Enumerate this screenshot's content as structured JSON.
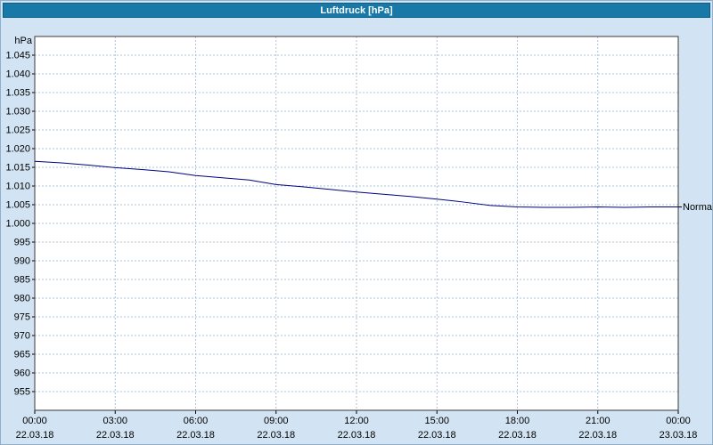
{
  "window": {
    "titlebar_bg": "#1879a8",
    "titlebar_border": "#0d5a83",
    "page_background": "#d2e4f3"
  },
  "chart_data": {
    "type": "line",
    "title": "Luftdruck [hPa]",
    "unit_label": "hPa",
    "xlabel": "",
    "ylabel": "hPa",
    "ylim": [
      950,
      1050
    ],
    "xlim_hours": [
      0,
      24
    ],
    "grid": true,
    "grid_color": "#a9c6e2",
    "plot_background": "#ffffff",
    "plot_border_color": "#3a3a3a",
    "x_tick_hours": [
      0,
      3,
      6,
      9,
      12,
      15,
      18,
      21,
      24
    ],
    "x_tick_labels": [
      "00:00",
      "03:00",
      "06:00",
      "09:00",
      "12:00",
      "15:00",
      "18:00",
      "21:00",
      "00:00"
    ],
    "x_date_labels": [
      "22.03.18",
      "22.03.18",
      "22.03.18",
      "22.03.18",
      "22.03.18",
      "22.03.18",
      "22.03.18",
      "22.03.18",
      "23.03.18"
    ],
    "y_ticks": [
      1045,
      1040,
      1035,
      1030,
      1025,
      1020,
      1015,
      1010,
      1005,
      1000,
      995,
      990,
      985,
      980,
      975,
      970,
      965,
      960,
      955
    ],
    "y_tick_labels": [
      "1.045",
      "1.040",
      "1.035",
      "1.030",
      "1.025",
      "1.020",
      "1.015",
      "1.010",
      "1.005",
      "1.000",
      "995",
      "990",
      "985",
      "980",
      "975",
      "970",
      "965",
      "960",
      "955"
    ],
    "series": [
      {
        "name": "Luftdruck",
        "color": "#000080",
        "x_hours": [
          0,
          1,
          2,
          3,
          4,
          5,
          6,
          7,
          8,
          9,
          10,
          11,
          12,
          13,
          14,
          15,
          16,
          17,
          18,
          19,
          20,
          21,
          22,
          23,
          24
        ],
        "values": [
          1016.6,
          1016.2,
          1015.6,
          1014.9,
          1014.4,
          1013.8,
          1012.8,
          1012.2,
          1011.6,
          1010.4,
          1009.8,
          1009.1,
          1008.4,
          1007.8,
          1007.2,
          1006.5,
          1005.7,
          1004.8,
          1004.4,
          1004.3,
          1004.3,
          1004.4,
          1004.3,
          1004.4,
          1004.4
        ]
      }
    ],
    "annotation": {
      "label": "Normal",
      "value": 1004.4
    },
    "legend_position": "none"
  }
}
